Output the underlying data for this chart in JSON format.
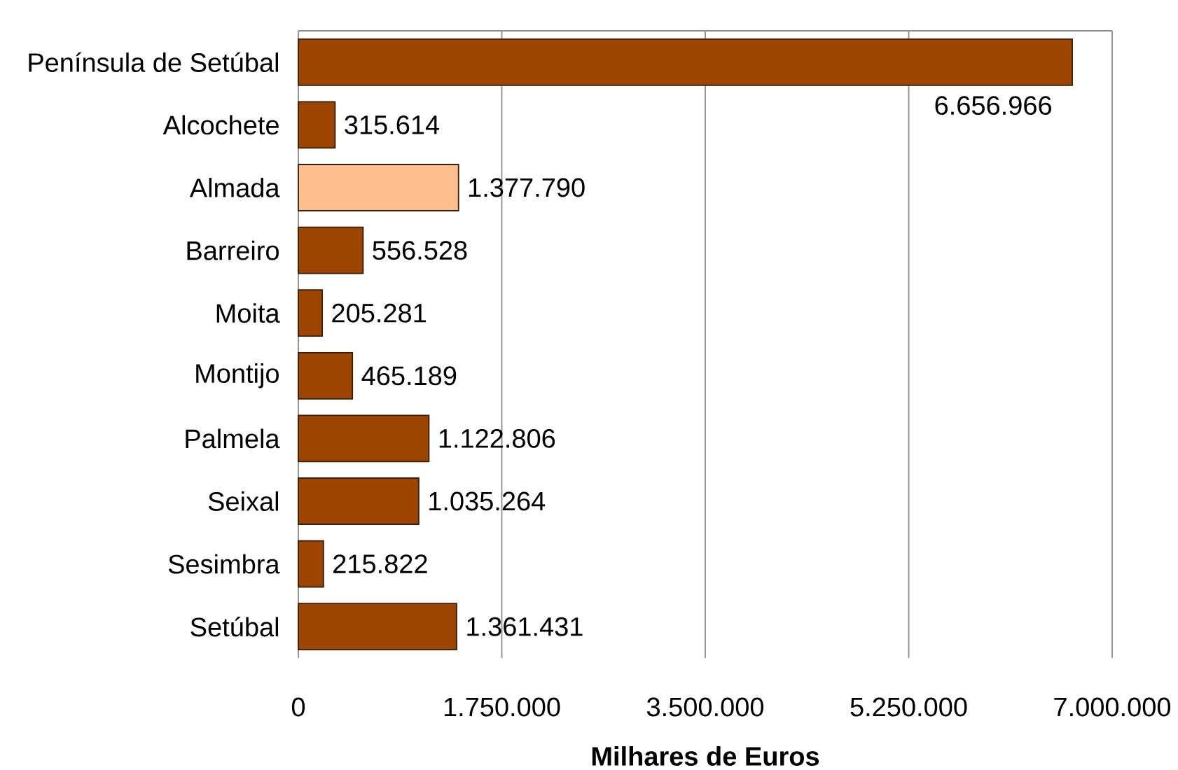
{
  "chart_data": {
    "type": "bar",
    "orientation": "horizontal",
    "xlabel": "Milhares de Euros",
    "categories": [
      "Península de Setúbal",
      "Alcochete",
      "Almada",
      "Barreiro",
      "Moita",
      "Montijo",
      "Palmela",
      "Seixal",
      "Sesimbra",
      "Setúbal"
    ],
    "values": [
      6656966,
      315614,
      1377790,
      556528,
      205281,
      465189,
      1122806,
      1035264,
      215822,
      1361431
    ],
    "colors": [
      "#9c4500",
      "#9c4500",
      "#ffbf8f",
      "#9c4500",
      "#9c4500",
      "#9c4500",
      "#9c4500",
      "#9c4500",
      "#9c4500",
      "#9c4500"
    ],
    "value_labels": [
      "6.656.966",
      "315.614",
      "1.377.790",
      "556.528",
      "205.281",
      "465.189",
      "1.122.806",
      "1.035.264",
      "215.822",
      "1.361.431"
    ],
    "xlim": [
      0,
      7000000
    ],
    "xticks": [
      0,
      {
        "value": 1750000,
        "label": "1.750.000"
      },
      {
        "value": 3500000,
        "label": "3.500.000"
      },
      {
        "value": 5250000,
        "label": "5.250.000"
      },
      {
        "value": 7000000,
        "label": "7.000.000"
      }
    ],
    "grid": "x"
  }
}
